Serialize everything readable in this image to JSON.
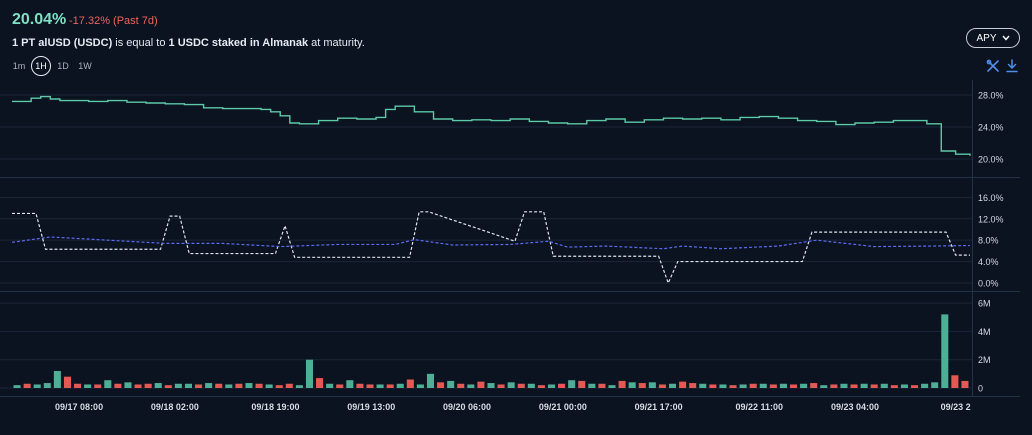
{
  "header": {
    "rate": "20.04%",
    "change": "-17.32% (Past 7d)",
    "desc_prefix": "1 PT alUSD (USDC)",
    "desc_mid": " is equal to ",
    "desc_strong": "1 USDC staked in Almanak",
    "desc_suffix": " at maturity."
  },
  "timeframes": [
    "1m",
    "1H",
    "1D",
    "1W"
  ],
  "active_timeframe": "1H",
  "apy_selector": {
    "label": "APY"
  },
  "toolbar_icons": [
    "settings-tools-icon",
    "download-icon"
  ],
  "colors": {
    "implied": "#5cc9a7",
    "underlying": "#5b6cf0",
    "range": "#dfe3f0",
    "volume_up": "#4fae96",
    "volume_down": "#e25a53",
    "grid": "#1b2638",
    "axis_text": "#d6dbe3"
  },
  "chart_data": [
    {
      "type": "line",
      "name": "implied-apy",
      "ylim": [
        18.5,
        29.5
      ],
      "yticks": [
        "28.0%",
        "24.0%",
        "20.0%"
      ],
      "ytick_values": [
        28,
        24,
        20
      ],
      "x": [
        0,
        2,
        3,
        4,
        5,
        8,
        10,
        12,
        14,
        16,
        18,
        20,
        22,
        24,
        26,
        27,
        28,
        29,
        30,
        32,
        34,
        36,
        38,
        39,
        40,
        42,
        44,
        46,
        48,
        50,
        52,
        54,
        56,
        58,
        60,
        62,
        64,
        66,
        68,
        70,
        72,
        74,
        76,
        78,
        80,
        82,
        84,
        86,
        88,
        90,
        92,
        94,
        95.5,
        97,
        98.5,
        100
      ],
      "values": [
        27.2,
        27.6,
        27.8,
        27.5,
        27.3,
        27.2,
        27.3,
        27.1,
        27.0,
        26.9,
        26.8,
        26.4,
        26.3,
        26.3,
        26.2,
        25.9,
        25.4,
        24.5,
        24.4,
        24.8,
        25.1,
        25.0,
        25.2,
        26.2,
        26.6,
        25.9,
        25.0,
        24.8,
        24.9,
        24.8,
        25.0,
        24.7,
        24.5,
        24.4,
        24.8,
        25.0,
        24.6,
        24.9,
        25.1,
        25.0,
        25.1,
        24.9,
        25.2,
        25.3,
        25.1,
        24.8,
        24.7,
        24.3,
        24.5,
        24.6,
        24.8,
        24.8,
        24.4,
        21.0,
        20.6,
        20.4
      ]
    },
    {
      "type": "line",
      "name": "underlying-apy",
      "ylim": [
        -1.5,
        18.5
      ],
      "yticks": [
        "16.0%",
        "12.0%",
        "8.0%",
        "4.0%",
        "0.0%"
      ],
      "ytick_values": [
        16,
        12,
        8,
        4,
        0
      ],
      "x": [
        0,
        4,
        10,
        16,
        22,
        28,
        34,
        40,
        42,
        46,
        52,
        56,
        58,
        62,
        68,
        70,
        74,
        80,
        84,
        90,
        96,
        100
      ],
      "values": [
        7.6,
        8.6,
        8.0,
        7.4,
        7.4,
        6.8,
        7.2,
        7.2,
        8.1,
        7.1,
        7.2,
        7.8,
        6.7,
        6.9,
        6.4,
        6.9,
        6.4,
        6.9,
        8.0,
        6.8,
        6.9,
        7.0
      ]
    },
    {
      "type": "line",
      "name": "apy-range",
      "ylim": [
        -1.5,
        18.5
      ],
      "x": [
        0,
        2.5,
        3.5,
        15.5,
        16.5,
        17.5,
        18.5,
        27.5,
        28.5,
        29.5,
        41.5,
        42.5,
        43.5,
        52.5,
        53.5,
        55.5,
        56.5,
        67.5,
        68.5,
        69.5,
        82.5,
        83.5,
        97.5,
        98.5,
        100
      ],
      "values": [
        13,
        13,
        6.3,
        6.3,
        12.5,
        12.5,
        5.5,
        5.5,
        10.7,
        4.8,
        4.8,
        13.3,
        13.3,
        7.8,
        13.3,
        13.3,
        5.0,
        5.0,
        0.0,
        4.0,
        4.0,
        9.5,
        9.5,
        5.2,
        5.2
      ]
    },
    {
      "type": "bar",
      "name": "volume",
      "ylim": [
        0,
        6500000
      ],
      "yticks": [
        "6M",
        "4M",
        "2M",
        "0"
      ],
      "ytick_values": [
        6000000,
        4000000,
        2000000,
        0
      ],
      "values": [
        200000,
        300000,
        250000,
        350000,
        1200000,
        800000,
        300000,
        250000,
        250000,
        550000,
        300000,
        400000,
        250000,
        300000,
        350000,
        200000,
        300000,
        300000,
        250000,
        350000,
        300000,
        250000,
        300000,
        350000,
        300000,
        250000,
        200000,
        300000,
        200000,
        2000000,
        700000,
        300000,
        250000,
        550000,
        300000,
        250000,
        250000,
        250000,
        300000,
        600000,
        250000,
        1000000,
        400000,
        500000,
        300000,
        250000,
        450000,
        350000,
        250000,
        400000,
        300000,
        300000,
        200000,
        250000,
        300000,
        550000,
        500000,
        300000,
        300000,
        200000,
        500000,
        400000,
        350000,
        400000,
        250000,
        300000,
        450000,
        350000,
        300000,
        250000,
        250000,
        200000,
        250000,
        300000,
        300000,
        250000,
        300000,
        250000,
        300000,
        350000,
        200000,
        250000,
        300000,
        250000,
        300000,
        250000,
        300000,
        200000,
        250000,
        200000,
        300000,
        400000,
        5200000,
        900000,
        500000
      ],
      "down": [
        false,
        true,
        false,
        false,
        false,
        true,
        true,
        false,
        true,
        false,
        true,
        false,
        true,
        true,
        false,
        true,
        false,
        false,
        true,
        false,
        true,
        false,
        true,
        false,
        true,
        false,
        true,
        true,
        false,
        false,
        true,
        false,
        true,
        false,
        true,
        true,
        false,
        true,
        false,
        true,
        false,
        false,
        true,
        false,
        true,
        false,
        true,
        false,
        true,
        false,
        true,
        false,
        true,
        false,
        true,
        false,
        true,
        false,
        true,
        false,
        true,
        false,
        true,
        false,
        true,
        false,
        true,
        true,
        false,
        true,
        false,
        true,
        false,
        true,
        false,
        true,
        false,
        true,
        false,
        true,
        false,
        true,
        false,
        true,
        false,
        true,
        false,
        true,
        false,
        true,
        false,
        false,
        false,
        true,
        true
      ]
    }
  ],
  "x_axis": {
    "labels": [
      "09/17 08:00",
      "09/18 02:00",
      "09/18 19:00",
      "09/19 13:00",
      "09/20 06:00",
      "09/21 00:00",
      "09/21 17:00",
      "09/22 11:00",
      "09/23 04:00",
      "09/23 2"
    ],
    "positions": [
      7.0,
      17.0,
      27.5,
      37.5,
      47.5,
      57.5,
      67.5,
      78.0,
      88.0,
      98.5
    ]
  }
}
